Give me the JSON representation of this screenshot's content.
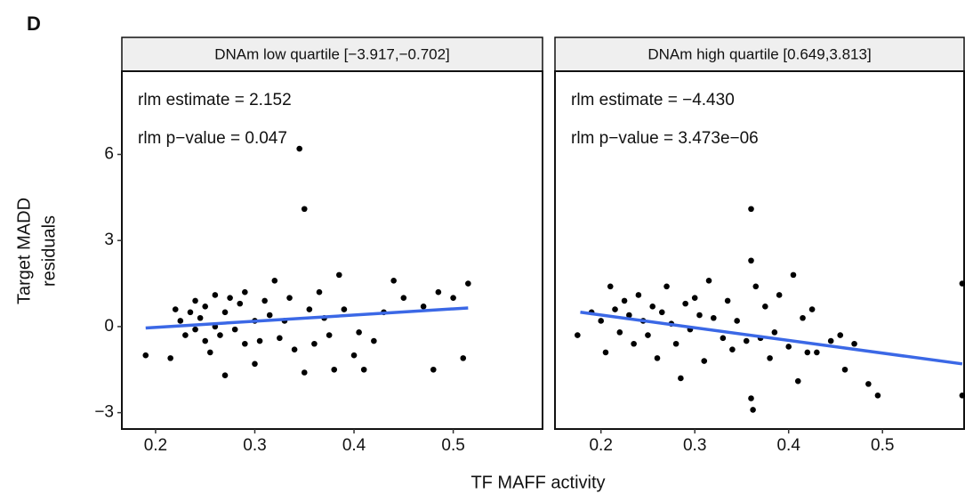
{
  "panel_label": "D",
  "x_label": "TF MAFF activity",
  "y_label": [
    "Target MADD",
    "residuals"
  ],
  "chart_data": [
    {
      "type": "scatter",
      "strip_title": "DNAm low quartile [−3.917,−0.702]",
      "annotations": [
        "rlm estimate = 2.152",
        "rlm p−value  = 0.047"
      ],
      "annotation_color": "#2f3ff2",
      "color": "#000000",
      "xlim": [
        0.166,
        0.59
      ],
      "ylim": [
        -3.57,
        8.9
      ],
      "xticks": [
        0.2,
        0.3,
        0.4,
        0.5
      ],
      "yticks": [
        {
          "value": -3,
          "label": "−3"
        },
        0,
        3,
        6
      ],
      "x": [
        0.19,
        0.215,
        0.22,
        0.225,
        0.23,
        0.235,
        0.24,
        0.24,
        0.245,
        0.25,
        0.25,
        0.255,
        0.26,
        0.26,
        0.265,
        0.27,
        0.27,
        0.275,
        0.28,
        0.285,
        0.29,
        0.29,
        0.3,
        0.3,
        0.305,
        0.31,
        0.315,
        0.32,
        0.325,
        0.33,
        0.335,
        0.34,
        0.345,
        0.35,
        0.35,
        0.355,
        0.36,
        0.365,
        0.37,
        0.375,
        0.38,
        0.385,
        0.39,
        0.4,
        0.405,
        0.41,
        0.42,
        0.43,
        0.44,
        0.45,
        0.47,
        0.48,
        0.485,
        0.5,
        0.51,
        0.515
      ],
      "y": [
        -1.0,
        -1.1,
        0.6,
        0.2,
        -0.3,
        0.5,
        0.9,
        -0.1,
        0.3,
        -0.5,
        0.7,
        -0.9,
        1.1,
        0.0,
        -0.3,
        -1.7,
        0.5,
        1.0,
        -0.1,
        0.8,
        -0.6,
        1.2,
        0.2,
        -1.3,
        -0.5,
        0.9,
        0.4,
        1.6,
        -0.4,
        0.2,
        1.0,
        -0.8,
        6.2,
        4.1,
        -1.6,
        0.6,
        -0.6,
        1.2,
        0.3,
        -0.3,
        -1.5,
        1.8,
        0.6,
        -1.0,
        -0.2,
        -1.5,
        -0.5,
        0.5,
        1.6,
        1.0,
        0.7,
        -1.5,
        1.2,
        1.0,
        -1.1,
        1.5
      ],
      "fit": {
        "x": [
          0.19,
          0.515
        ],
        "y": [
          -0.05,
          0.65
        ],
        "color": "#3b68e6"
      }
    },
    {
      "type": "scatter",
      "strip_title": "DNAm high quartile [0.649,3.813]",
      "annotations": [
        "rlm estimate = −4.430",
        "rlm p−value = 3.473e−06"
      ],
      "annotation_color": "#2f3ff2",
      "color": "#000000",
      "xlim": [
        0.151,
        0.587
      ],
      "ylim": [
        -3.57,
        8.9
      ],
      "xticks": [
        0.2,
        0.3,
        0.4,
        0.5
      ],
      "x": [
        0.175,
        0.19,
        0.2,
        0.205,
        0.21,
        0.215,
        0.22,
        0.225,
        0.23,
        0.235,
        0.24,
        0.245,
        0.25,
        0.255,
        0.26,
        0.265,
        0.27,
        0.275,
        0.28,
        0.285,
        0.29,
        0.295,
        0.3,
        0.305,
        0.31,
        0.315,
        0.32,
        0.33,
        0.335,
        0.34,
        0.345,
        0.355,
        0.36,
        0.36,
        0.36,
        0.362,
        0.365,
        0.37,
        0.375,
        0.38,
        0.385,
        0.39,
        0.4,
        0.405,
        0.41,
        0.415,
        0.42,
        0.425,
        0.43,
        0.445,
        0.455,
        0.46,
        0.47,
        0.485,
        0.495,
        0.585,
        0.585
      ],
      "y": [
        -0.3,
        0.5,
        0.2,
        -0.9,
        1.4,
        0.6,
        -0.2,
        0.9,
        0.4,
        -0.6,
        1.1,
        0.2,
        -0.3,
        0.7,
        -1.1,
        0.5,
        1.4,
        0.1,
        -0.6,
        -1.8,
        0.8,
        -0.1,
        1.0,
        0.4,
        -1.2,
        1.6,
        0.3,
        -0.4,
        0.9,
        -0.8,
        0.2,
        -0.5,
        4.1,
        2.3,
        -2.5,
        -2.9,
        1.4,
        -0.4,
        0.7,
        -1.1,
        -0.2,
        1.1,
        -0.7,
        1.8,
        -1.9,
        0.3,
        -0.9,
        0.6,
        -0.9,
        -0.5,
        -0.3,
        -1.5,
        -0.6,
        -2.0,
        -2.4,
        1.5,
        -2.4
      ],
      "fit": {
        "x": [
          0.178,
          0.585
        ],
        "y": [
          0.5,
          -1.3
        ],
        "color": "#3b68e6"
      }
    }
  ]
}
